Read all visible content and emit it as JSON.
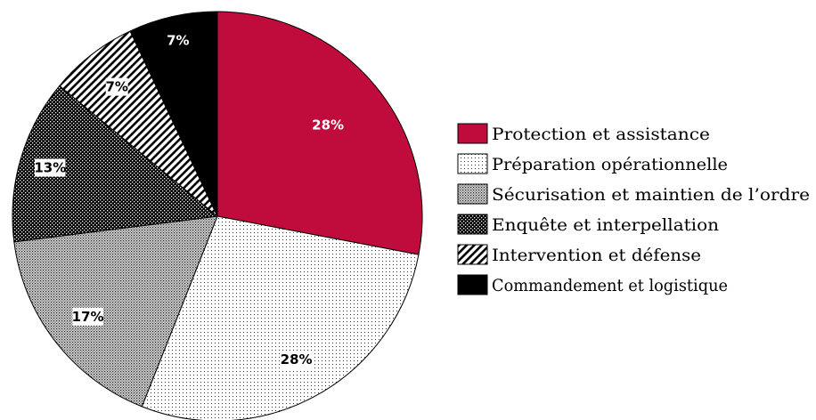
{
  "chart_data": {
    "type": "pie",
    "title": "",
    "start_angle_deg": 0,
    "direction": "clockwise",
    "legend_position": "right",
    "slices": [
      {
        "label": "Protection et assistance",
        "value": 28,
        "display": "28%",
        "fill": "#c00c3c",
        "pattern": "solid"
      },
      {
        "label": "Préparation opérationnelle",
        "value": 28,
        "display": "28%",
        "fill": "#ffffff",
        "pattern": "fine-dots"
      },
      {
        "label": "Sécurisation et maintien de l’ordre",
        "value": 17,
        "display": "17%",
        "fill": "#ffffff",
        "pattern": "dense-dots"
      },
      {
        "label": "Enquête et interpellation",
        "value": 13,
        "display": "13%",
        "fill": "#000000",
        "pattern": "checker"
      },
      {
        "label": "Intervention et défense",
        "value": 7,
        "display": "7%",
        "fill": "#ffffff",
        "pattern": "diagonal-hatch"
      },
      {
        "label": "Commandement et logistique",
        "value": 7,
        "display": "7%",
        "fill": "#000000",
        "pattern": "solid"
      }
    ]
  }
}
